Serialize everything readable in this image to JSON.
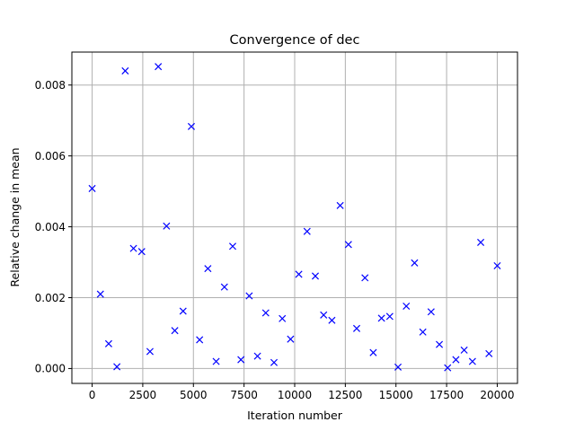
{
  "chart_data": {
    "type": "scatter",
    "title": "Convergence of dec",
    "xlabel": "Iteration number",
    "ylabel": "Relative change in mean",
    "xlim": [
      -1000,
      21000
    ],
    "ylim": [
      -0.00042,
      0.00893
    ],
    "xticks": [
      0,
      2500,
      5000,
      7500,
      10000,
      12500,
      15000,
      17500,
      20000
    ],
    "xtick_labels": [
      "0",
      "2500",
      "5000",
      "7500",
      "10000",
      "12500",
      "15000",
      "17500",
      "20000"
    ],
    "yticks": [
      0.0,
      0.002,
      0.004,
      0.006,
      0.008
    ],
    "ytick_labels": [
      "0.000",
      "0.002",
      "0.004",
      "0.006",
      "0.008"
    ],
    "grid": true,
    "marker": "x",
    "color": "#0000ff",
    "series": [
      {
        "x": [
          0,
          408,
          816,
          1224,
          1633,
          2041,
          2449,
          2857,
          3265,
          3673,
          4082,
          4490,
          4898,
          5306,
          5714,
          6122,
          6531,
          6939,
          7347,
          7755,
          8163,
          8571,
          8980,
          9388,
          9796,
          10204,
          10612,
          11020,
          11429,
          11837,
          12245,
          12653,
          13061,
          13469,
          13878,
          14286,
          14694,
          15102,
          15510,
          15918,
          16327,
          16735,
          17143,
          17551,
          17959,
          18367,
          18776,
          19184,
          19592,
          20000
        ],
        "y": [
          0.00508,
          0.0021,
          0.0007,
          5e-05,
          0.0084,
          0.00339,
          0.0033,
          0.00048,
          0.00852,
          0.00402,
          0.00107,
          0.00162,
          0.00683,
          0.00081,
          0.00282,
          0.0002,
          0.0023,
          0.00345,
          0.00025,
          0.00205,
          0.00035,
          0.00157,
          0.00017,
          0.00141,
          0.00083,
          0.00266,
          0.00387,
          0.00261,
          0.00151,
          0.00136,
          0.0046,
          0.0035,
          0.00113,
          0.00256,
          0.00045,
          0.00142,
          0.00147,
          4e-05,
          0.00176,
          0.00298,
          0.00103,
          0.0016,
          0.00068,
          2e-05,
          0.00025,
          0.00052,
          0.0002,
          0.00356,
          0.00042,
          0.0029
        ]
      }
    ]
  }
}
